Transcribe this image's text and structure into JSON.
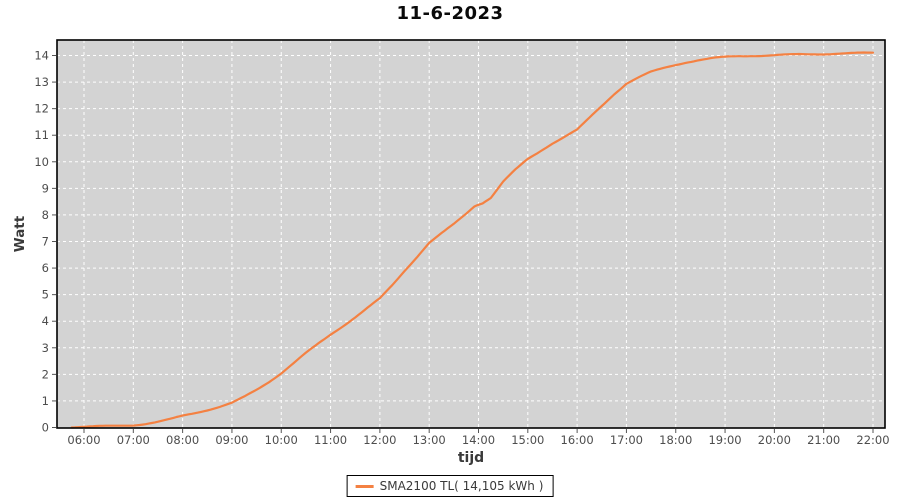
{
  "chart_data": {
    "type": "line",
    "title": "11-6-2023",
    "xlabel": "tijd",
    "ylabel": "Watt",
    "x_ticks": [
      "06:00",
      "07:00",
      "08:00",
      "09:00",
      "10:00",
      "11:00",
      "12:00",
      "13:00",
      "14:00",
      "15:00",
      "16:00",
      "17:00",
      "18:00",
      "19:00",
      "20:00",
      "21:00",
      "22:00"
    ],
    "y_ticks": [
      "0",
      "1",
      "2",
      "3",
      "4",
      "5",
      "6",
      "7",
      "8",
      "9",
      "10",
      "11",
      "12",
      "13",
      "14"
    ],
    "xlim_hours": [
      5.45,
      22.24
    ],
    "ylim": [
      0,
      14.6
    ],
    "grid": "white dashed on gray plot background",
    "colors": {
      "plot_background": "#d3d3d3",
      "grid_line": "#ffffff",
      "plot_border": "#000000",
      "series_line": "#f48142",
      "tick_label": "#4d4d4d"
    },
    "legend": {
      "label": "SMA2100 TL( 14,105 kWh )",
      "position": "bottom-center"
    },
    "series": [
      {
        "name": "SMA2100 TL",
        "total_kwh_label": "14,105 kWh",
        "color": "#f48142",
        "points": [
          [
            "05:45",
            0.02
          ],
          [
            "06:00",
            0.03
          ],
          [
            "06:15",
            0.04
          ],
          [
            "06:30",
            0.05
          ],
          [
            "06:45",
            0.07
          ],
          [
            "07:00",
            0.09
          ],
          [
            "07:15",
            0.14
          ],
          [
            "07:30",
            0.21
          ],
          [
            "07:45",
            0.31
          ],
          [
            "08:00",
            0.44
          ],
          [
            "08:15",
            0.55
          ],
          [
            "08:30",
            0.66
          ],
          [
            "08:45",
            0.78
          ],
          [
            "09:00",
            0.92
          ],
          [
            "09:15",
            1.15
          ],
          [
            "09:30",
            1.42
          ],
          [
            "09:45",
            1.72
          ],
          [
            "10:00",
            2.05
          ],
          [
            "10:15",
            2.42
          ],
          [
            "10:30",
            2.8
          ],
          [
            "10:45",
            3.15
          ],
          [
            "11:00",
            3.5
          ],
          [
            "11:15",
            3.82
          ],
          [
            "11:30",
            4.15
          ],
          [
            "11:45",
            4.5
          ],
          [
            "12:00",
            4.85
          ],
          [
            "12:15",
            5.35
          ],
          [
            "12:30",
            5.9
          ],
          [
            "12:45",
            6.42
          ],
          [
            "13:00",
            6.95
          ],
          [
            "13:15",
            7.3
          ],
          [
            "13:30",
            7.65
          ],
          [
            "13:45",
            8.05
          ],
          [
            "13:55",
            8.3
          ],
          [
            "14:05",
            8.42
          ],
          [
            "14:15",
            8.65
          ],
          [
            "14:30",
            9.25
          ],
          [
            "14:45",
            9.7
          ],
          [
            "15:00",
            10.1
          ],
          [
            "15:15",
            10.4
          ],
          [
            "15:30",
            10.7
          ],
          [
            "15:45",
            10.95
          ],
          [
            "16:00",
            11.2
          ],
          [
            "16:15",
            11.65
          ],
          [
            "16:30",
            12.1
          ],
          [
            "16:45",
            12.55
          ],
          [
            "17:00",
            12.95
          ],
          [
            "17:15",
            13.18
          ],
          [
            "17:30",
            13.38
          ],
          [
            "17:45",
            13.52
          ],
          [
            "18:00",
            13.65
          ],
          [
            "18:15",
            13.76
          ],
          [
            "18:30",
            13.84
          ],
          [
            "18:45",
            13.9
          ],
          [
            "19:00",
            13.94
          ],
          [
            "19:15",
            13.97
          ],
          [
            "19:30",
            13.99
          ],
          [
            "20:00",
            14.01
          ],
          [
            "20:30",
            14.04
          ],
          [
            "21:00",
            14.06
          ],
          [
            "21:30",
            14.08
          ],
          [
            "22:00",
            14.1
          ]
        ]
      }
    ]
  }
}
